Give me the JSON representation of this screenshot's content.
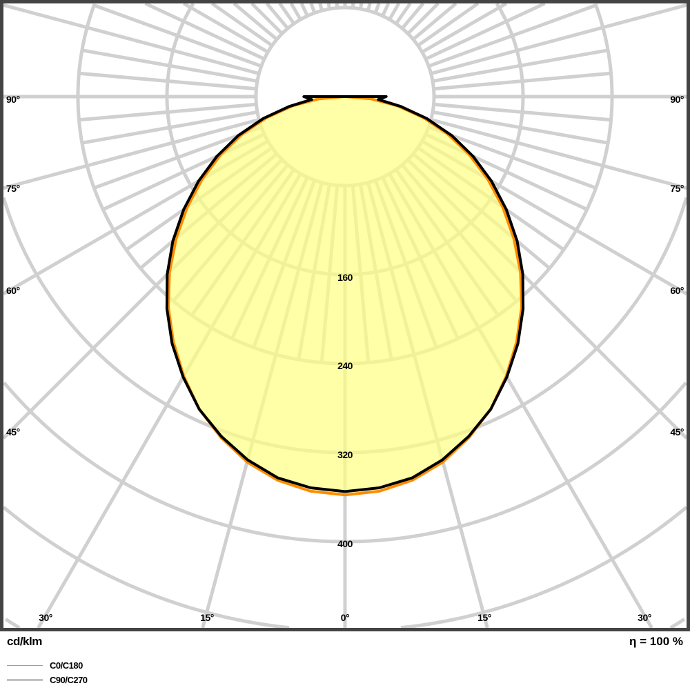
{
  "chart_data": {
    "type": "polar",
    "unit_label": "cd/klm",
    "efficiency_label": "η = 100 %",
    "radial_ticks": [
      80,
      160,
      240,
      320,
      400,
      480,
      560,
      640,
      720,
      800
    ],
    "radial_tick_labels": [
      "160",
      "240",
      "320",
      "400"
    ],
    "angle_labels_side": [
      {
        "angle": 90,
        "text": "90°"
      },
      {
        "angle": 75,
        "text": "75°"
      },
      {
        "angle": 60,
        "text": "60°"
      },
      {
        "angle": 45,
        "text": "45°"
      }
    ],
    "angle_labels_bottom": [
      {
        "angle": -30,
        "text": "30°"
      },
      {
        "angle": -15,
        "text": "15°"
      },
      {
        "angle": 0,
        "text": "0°"
      },
      {
        "angle": 15,
        "text": "15°"
      },
      {
        "angle": 30,
        "text": "30°"
      }
    ],
    "grid": true,
    "legend_placement": "bottom-left",
    "fill_color": "#ffff80",
    "grid_color": "#d0d0d0",
    "angles": [
      0,
      5,
      10,
      15,
      20,
      25,
      30,
      35,
      40,
      45,
      50,
      55,
      60,
      65,
      70,
      75,
      80,
      85,
      90
    ],
    "series": [
      {
        "name": "C0/C180",
        "color": "#ff8c00",
        "values": [
          358,
          356,
          350,
          340,
          326,
          310,
          290,
          269,
          247,
          223,
          198,
          173,
          148,
          123,
          98,
          73,
          48,
          24,
          0
        ]
      },
      {
        "name": "C90/C270",
        "color": "#000000",
        "values": [
          355,
          353,
          348,
          338,
          325,
          310,
          291,
          271,
          249,
          226,
          202,
          177,
          152,
          127,
          102,
          76,
          51,
          30,
          37
        ]
      }
    ]
  }
}
